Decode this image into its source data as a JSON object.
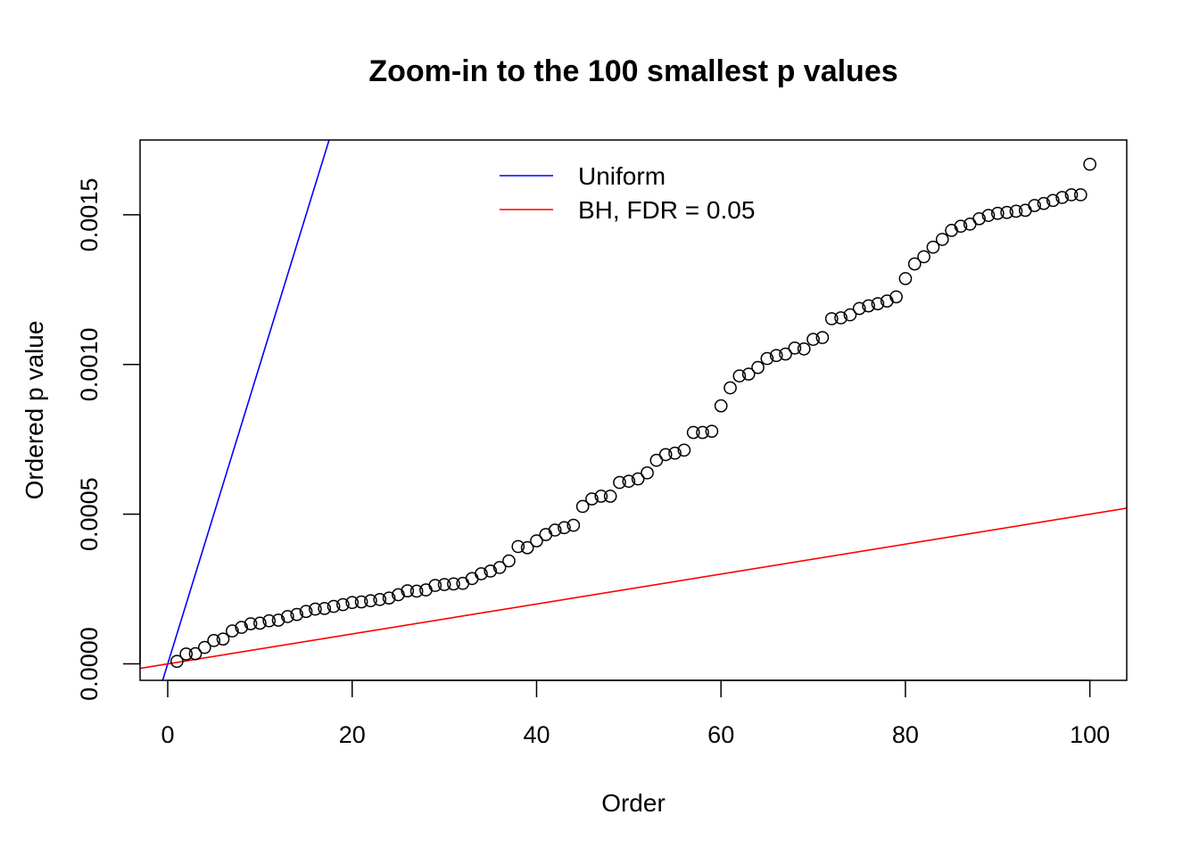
{
  "chart_data": {
    "type": "scatter",
    "title": "Zoom-in to the 100 smallest p values",
    "xlabel": "Order",
    "ylabel": "Ordered p value",
    "xlim": [
      -3,
      104
    ],
    "ylim": [
      -5.5e-05,
      0.00175
    ],
    "x_ticks": [
      {
        "value": 0,
        "label": "0"
      },
      {
        "value": 20,
        "label": "20"
      },
      {
        "value": 40,
        "label": "40"
      },
      {
        "value": 60,
        "label": "60"
      },
      {
        "value": 80,
        "label": "80"
      },
      {
        "value": 100,
        "label": "100"
      }
    ],
    "y_ticks": [
      {
        "value": 0,
        "label": "0.0000"
      },
      {
        "value": 0.0005,
        "label": "0.0005"
      },
      {
        "value": 0.001,
        "label": "0.0010"
      },
      {
        "value": 0.0015,
        "label": "0.0015"
      }
    ],
    "grid": false,
    "legend_position": "top-center",
    "legend": [
      {
        "label": "Uniform",
        "color": "#0000ff"
      },
      {
        "label": "BH, FDR = 0.05",
        "color": "#ff0000"
      }
    ],
    "lines": [
      {
        "name": "Uniform",
        "color": "#0000ff",
        "intercept": 0,
        "slope": 0.0001
      },
      {
        "name": "BH, FDR = 0.05",
        "color": "#ff0000",
        "intercept": 0,
        "slope": 5e-06
      }
    ],
    "points": {
      "x": [
        1,
        2,
        3,
        4,
        5,
        6,
        7,
        8,
        9,
        10,
        11,
        12,
        13,
        14,
        15,
        16,
        17,
        18,
        19,
        20,
        21,
        22,
        23,
        24,
        25,
        26,
        27,
        28,
        29,
        30,
        31,
        32,
        33,
        34,
        35,
        36,
        37,
        38,
        39,
        40,
        41,
        42,
        43,
        44,
        45,
        46,
        47,
        48,
        49,
        50,
        51,
        52,
        53,
        54,
        55,
        56,
        57,
        58,
        59,
        60,
        61,
        62,
        63,
        64,
        65,
        66,
        67,
        68,
        69,
        70,
        71,
        72,
        73,
        74,
        75,
        76,
        77,
        78,
        79,
        80,
        81,
        82,
        83,
        84,
        85,
        86,
        87,
        88,
        89,
        90,
        91,
        92,
        93,
        94,
        95,
        96,
        97,
        98,
        99,
        100
      ],
      "y": [
        8.5e-06,
        3.3e-05,
        3.4e-05,
        5.5e-05,
        7.8e-05,
        8.3e-05,
        0.00011,
        0.000122,
        0.000134,
        0.000136,
        0.000144,
        0.000146,
        0.000158,
        0.000165,
        0.000175,
        0.000183,
        0.000185,
        0.000192,
        0.000198,
        0.000205,
        0.000207,
        0.000211,
        0.000215,
        0.00022,
        0.000231,
        0.000244,
        0.000243,
        0.000247,
        0.000262,
        0.000265,
        0.000267,
        0.000269,
        0.000285,
        0.000301,
        0.00031,
        0.000322,
        0.000344,
        0.000392,
        0.000388,
        0.000411,
        0.000432,
        0.000447,
        0.000455,
        0.000463,
        0.000526,
        0.000551,
        0.00056,
        0.00056,
        0.000606,
        0.00061,
        0.000618,
        0.000638,
        0.00068,
        0.000699,
        0.000704,
        0.000714,
        0.000773,
        0.000773,
        0.000777,
        0.000862,
        0.000922,
        0.000962,
        0.000968,
        0.00099,
        0.00102,
        0.00103,
        0.001035,
        0.001055,
        0.001052,
        0.001084,
        0.00109,
        0.001153,
        0.001156,
        0.001166,
        0.001187,
        0.001196,
        0.001203,
        0.001212,
        0.001226,
        0.001287,
        0.001336,
        0.00136,
        0.001392,
        0.001418,
        0.001448,
        0.001462,
        0.001469,
        0.001487,
        0.001498,
        0.001505,
        0.001508,
        0.001512,
        0.001515,
        0.001531,
        0.001538,
        0.001548,
        0.001558,
        0.001567,
        0.001567,
        0.001669
      ]
    }
  }
}
